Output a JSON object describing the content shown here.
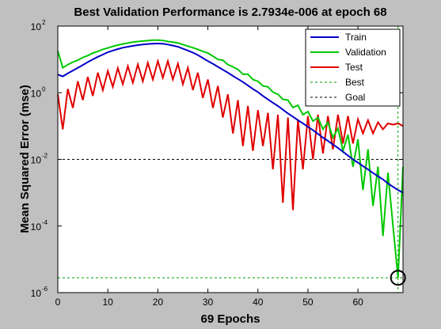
{
  "chart_data": {
    "type": "line",
    "title": "Best Validation Performance is 2.7934e-006 at epoch 68",
    "xlabel": "69 Epochs",
    "ylabel": "Mean Squared Error  (mse)",
    "x_range": [
      0,
      69
    ],
    "y_range": [
      1e-06,
      100
    ],
    "y_scale": "log",
    "grid": false,
    "legend_position": "top-right",
    "x_ticks": [
      0,
      10,
      20,
      30,
      40,
      50,
      60
    ],
    "x_tick_labels": [
      "0",
      "10",
      "20",
      "30",
      "40",
      "50",
      "60"
    ],
    "y_ticks": [
      {
        "value": 100,
        "base": "10",
        "exp": "2"
      },
      {
        "value": 1,
        "base": "10",
        "exp": "0"
      },
      {
        "value": 0.01,
        "base": "10",
        "exp": "-2"
      },
      {
        "value": 0.0001,
        "base": "10",
        "exp": "-4"
      },
      {
        "value": 1e-06,
        "base": "10",
        "exp": "-6"
      }
    ],
    "series": [
      {
        "name": "Train",
        "color": "#0000c8",
        "style": "solid",
        "x": [
          0,
          1,
          2,
          3,
          4,
          5,
          6,
          7,
          8,
          9,
          10,
          11,
          12,
          13,
          14,
          15,
          16,
          17,
          18,
          19,
          20,
          21,
          22,
          23,
          24,
          25,
          26,
          27,
          28,
          29,
          30,
          31,
          32,
          33,
          34,
          35,
          36,
          37,
          38,
          39,
          40,
          41,
          42,
          43,
          44,
          45,
          46,
          47,
          48,
          49,
          50,
          51,
          52,
          53,
          54,
          55,
          56,
          57,
          58,
          59,
          60,
          61,
          62,
          63,
          64,
          65,
          66,
          67,
          68,
          69
        ],
        "y": [
          3.5,
          3.1,
          3.8,
          4.6,
          5.6,
          6.8,
          8.3,
          10,
          12,
          14,
          16.5,
          18.5,
          20.5,
          22.5,
          24,
          25.5,
          27,
          28,
          29,
          29.5,
          30,
          29.5,
          28,
          26,
          24,
          21,
          18.5,
          16,
          13.5,
          11,
          8.9,
          7.4,
          6,
          4.9,
          4,
          3.2,
          2.6,
          2.1,
          1.65,
          1.3,
          1.05,
          0.8,
          0.63,
          0.5,
          0.4,
          0.31,
          0.24,
          0.19,
          0.15,
          0.12,
          0.095,
          0.075,
          0.058,
          0.045,
          0.036,
          0.028,
          0.022,
          0.017,
          0.013,
          0.01,
          0.008,
          0.0063,
          0.005,
          0.0039,
          0.0031,
          0.0025,
          0.0019,
          0.0015,
          0.0012,
          0.001
        ]
      },
      {
        "name": "Validation",
        "color": "#00c800",
        "style": "solid",
        "x": [
          0,
          1,
          2,
          3,
          4,
          5,
          6,
          7,
          8,
          9,
          10,
          11,
          12,
          13,
          14,
          15,
          16,
          17,
          18,
          19,
          20,
          21,
          22,
          23,
          24,
          25,
          26,
          27,
          28,
          29,
          30,
          31,
          32,
          33,
          34,
          35,
          36,
          37,
          38,
          39,
          40,
          41,
          42,
          43,
          44,
          45,
          46,
          47,
          48,
          49,
          50,
          51,
          52,
          53,
          54,
          55,
          56,
          57,
          58,
          59,
          60,
          61,
          62,
          63,
          64,
          65,
          66,
          67,
          68,
          69
        ],
        "y": [
          18,
          5.6,
          7,
          8.3,
          9.5,
          11.5,
          13,
          15.5,
          17.5,
          20,
          22,
          24.5,
          27,
          29,
          31,
          33,
          34.5,
          35.5,
          36.5,
          38,
          38,
          37,
          34.5,
          33,
          31,
          28,
          25,
          22.5,
          20,
          17.5,
          15.5,
          12.5,
          10,
          9.5,
          7,
          6,
          5,
          3.6,
          3.6,
          2.5,
          2.2,
          1.6,
          1.5,
          1.05,
          0.9,
          0.63,
          0.6,
          0.36,
          0.42,
          0.22,
          0.27,
          0.14,
          0.18,
          0.08,
          0.13,
          0.045,
          0.085,
          0.018,
          0.055,
          0.006,
          0.04,
          0.0012,
          0.02,
          0.0004,
          0.006,
          5e-05,
          0.004,
          0.0001,
          2.8e-06,
          0.006
        ]
      },
      {
        "name": "Test",
        "color": "#e00000",
        "style": "solid",
        "x": [
          0,
          1,
          2,
          3,
          4,
          5,
          6,
          7,
          8,
          9,
          10,
          11,
          12,
          13,
          14,
          15,
          16,
          17,
          18,
          19,
          20,
          21,
          22,
          23,
          24,
          25,
          26,
          27,
          28,
          29,
          30,
          31,
          32,
          33,
          34,
          35,
          36,
          37,
          38,
          39,
          40,
          41,
          42,
          43,
          44,
          45,
          46,
          47,
          48,
          49,
          50,
          51,
          52,
          53,
          54,
          55,
          56,
          57,
          58,
          59,
          60,
          61,
          62,
          63,
          64,
          65,
          66,
          67,
          68,
          69
        ],
        "y": [
          0.9,
          0.08,
          1.3,
          0.35,
          2.2,
          0.6,
          3,
          0.8,
          4,
          1.2,
          4.5,
          1.5,
          5.5,
          1.8,
          6.3,
          2,
          7.1,
          2.2,
          7.9,
          2.5,
          8.9,
          2.8,
          8.9,
          2.5,
          7.5,
          1.8,
          5.6,
          1.2,
          4,
          0.7,
          2.5,
          0.35,
          1.6,
          0.18,
          0.9,
          0.06,
          0.6,
          0.025,
          0.4,
          0.018,
          0.3,
          0.025,
          0.25,
          0.005,
          0.22,
          0.0005,
          0.18,
          0.0003,
          0.16,
          0.005,
          0.2,
          0.01,
          0.22,
          0.015,
          0.2,
          0.02,
          0.22,
          0.03,
          0.2,
          0.03,
          0.16,
          0.06,
          0.15,
          0.06,
          0.13,
          0.08,
          0.12,
          0.11,
          0.12,
          0.1
        ]
      },
      {
        "name": "Best",
        "color": "#00a000",
        "style": "dotted",
        "x": [
          0,
          69
        ],
        "y": [
          2.7934e-06,
          2.7934e-06
        ]
      },
      {
        "name": "Goal",
        "color": "#000000",
        "style": "dotted",
        "x": [
          0,
          69
        ],
        "y": [
          0.01,
          0.01
        ]
      }
    ],
    "best_marker": {
      "epoch": 68,
      "value": 2.7934e-06,
      "color": "#00a000"
    }
  }
}
